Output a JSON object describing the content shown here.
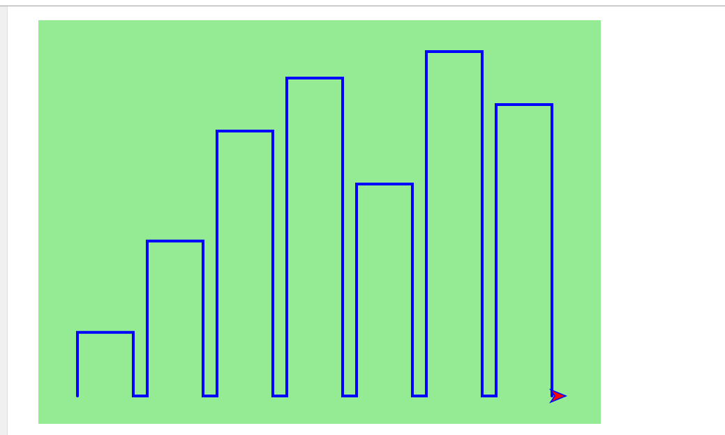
{
  "canvas": {
    "background_color": "#94eb94",
    "pen_color": "#0000ff",
    "turtle_fill_color": "#ff0000",
    "turtle_outline_color": "#0000ff",
    "turtle_icon": "arrow-turtle-icon"
  },
  "chart_data": {
    "type": "bar",
    "categories": [
      "",
      "",
      "",
      "",
      "",
      "",
      ""
    ],
    "values": [
      48,
      117,
      200,
      240,
      160,
      260,
      220
    ],
    "ylim": [
      0,
      260
    ],
    "grid": false,
    "legend": "none"
  }
}
